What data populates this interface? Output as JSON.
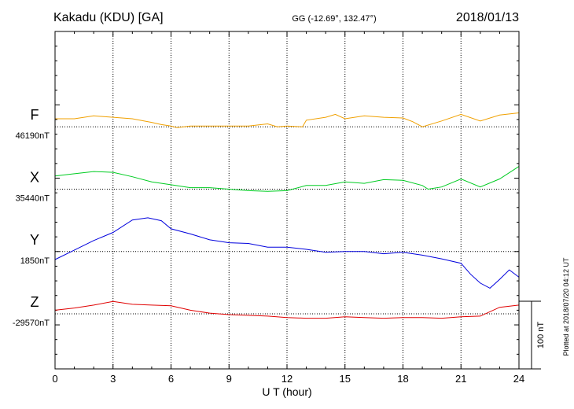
{
  "header": {
    "station": "Kakadu (KDU)  [GA]",
    "coords": "GG (-12.69°, 132.47°)",
    "date": "2018/01/13"
  },
  "footer_note": "Plotted at 2018/07/20 04:12 UT",
  "chart_data": {
    "type": "line",
    "xlabel": "U T (hour)",
    "xlim": [
      0,
      24
    ],
    "x_ticks": [
      0,
      3,
      6,
      9,
      12,
      15,
      18,
      21,
      24
    ],
    "ylim_nT_relative": [
      -460,
      0
    ],
    "grid": true,
    "scale_bar": {
      "label": "100 nT",
      "value": 100,
      "unit": "nT"
    },
    "series": [
      {
        "name": "F",
        "baseline_label": "46190nT",
        "baseline": 46190,
        "baseline_offset": -130,
        "color": "#f0a000",
        "x": [
          0,
          1,
          2,
          3,
          4,
          5,
          5.5,
          6,
          6.3,
          7,
          8,
          9,
          10,
          11,
          11.5,
          12,
          12.8,
          13,
          14,
          14.5,
          15,
          16,
          17,
          18,
          18.5,
          19,
          20,
          21,
          22,
          23,
          24
        ],
        "y": [
          46201,
          46201,
          46205,
          46203,
          46201,
          46196,
          46193,
          46191,
          46189,
          46191,
          46191,
          46191,
          46191,
          46194,
          46190,
          46191,
          46190,
          46199,
          46203,
          46207,
          46201,
          46205,
          46203,
          46202,
          46197,
          46190,
          46198,
          46207,
          46198,
          46206,
          46209
        ]
      },
      {
        "name": "X",
        "baseline_label": "35440nT",
        "baseline": 35440,
        "baseline_offset": -215,
        "color": "#00cc22",
        "x": [
          0,
          1,
          2,
          3,
          4,
          5,
          6,
          7,
          8,
          9,
          10,
          11,
          12,
          13,
          14,
          15,
          16,
          17,
          18,
          19,
          19.3,
          20,
          21,
          22,
          23,
          24
        ],
        "y": [
          35458,
          35461,
          35464,
          35463,
          35457,
          35450,
          35446,
          35442,
          35442,
          35440,
          35438,
          35437,
          35438,
          35445,
          35445,
          35450,
          35448,
          35453,
          35452,
          35445,
          35440,
          35443,
          35454,
          35443,
          35454,
          35471
        ]
      },
      {
        "name": "Y",
        "baseline_label": "1850nT",
        "baseline": 1850,
        "baseline_offset": -300,
        "color": "#0000dd",
        "x": [
          0,
          1,
          2,
          3,
          4,
          4.8,
          5.5,
          6,
          7,
          8,
          9,
          10,
          11,
          12,
          13,
          14,
          15,
          16,
          17,
          18,
          19,
          20,
          21,
          21.5,
          22,
          22.5,
          23,
          23.5,
          24
        ],
        "y": [
          1839,
          1852,
          1865,
          1876,
          1893,
          1896,
          1892,
          1881,
          1874,
          1866,
          1862,
          1861,
          1856,
          1856,
          1853,
          1849,
          1850,
          1850,
          1847,
          1849,
          1845,
          1840,
          1834,
          1819,
          1807,
          1800,
          1812,
          1825,
          1815
        ]
      },
      {
        "name": "Z",
        "baseline_label": "-29570nT",
        "baseline": -29570,
        "baseline_offset": -385,
        "color": "#e00000",
        "x": [
          0,
          1,
          2,
          3,
          4,
          5,
          6,
          7,
          8,
          9,
          10,
          11,
          12,
          13,
          14,
          15,
          16,
          17,
          18,
          19,
          20,
          21,
          22,
          23,
          24
        ],
        "y": [
          -29565,
          -29562,
          -29558,
          -29553,
          -29557,
          -29558,
          -29559,
          -29565,
          -29569,
          -29571,
          -29572,
          -29573,
          -29575,
          -29576,
          -29576,
          -29574,
          -29575,
          -29576,
          -29575,
          -29575,
          -29576,
          -29574,
          -29573,
          -29561,
          -29558
        ]
      }
    ]
  }
}
